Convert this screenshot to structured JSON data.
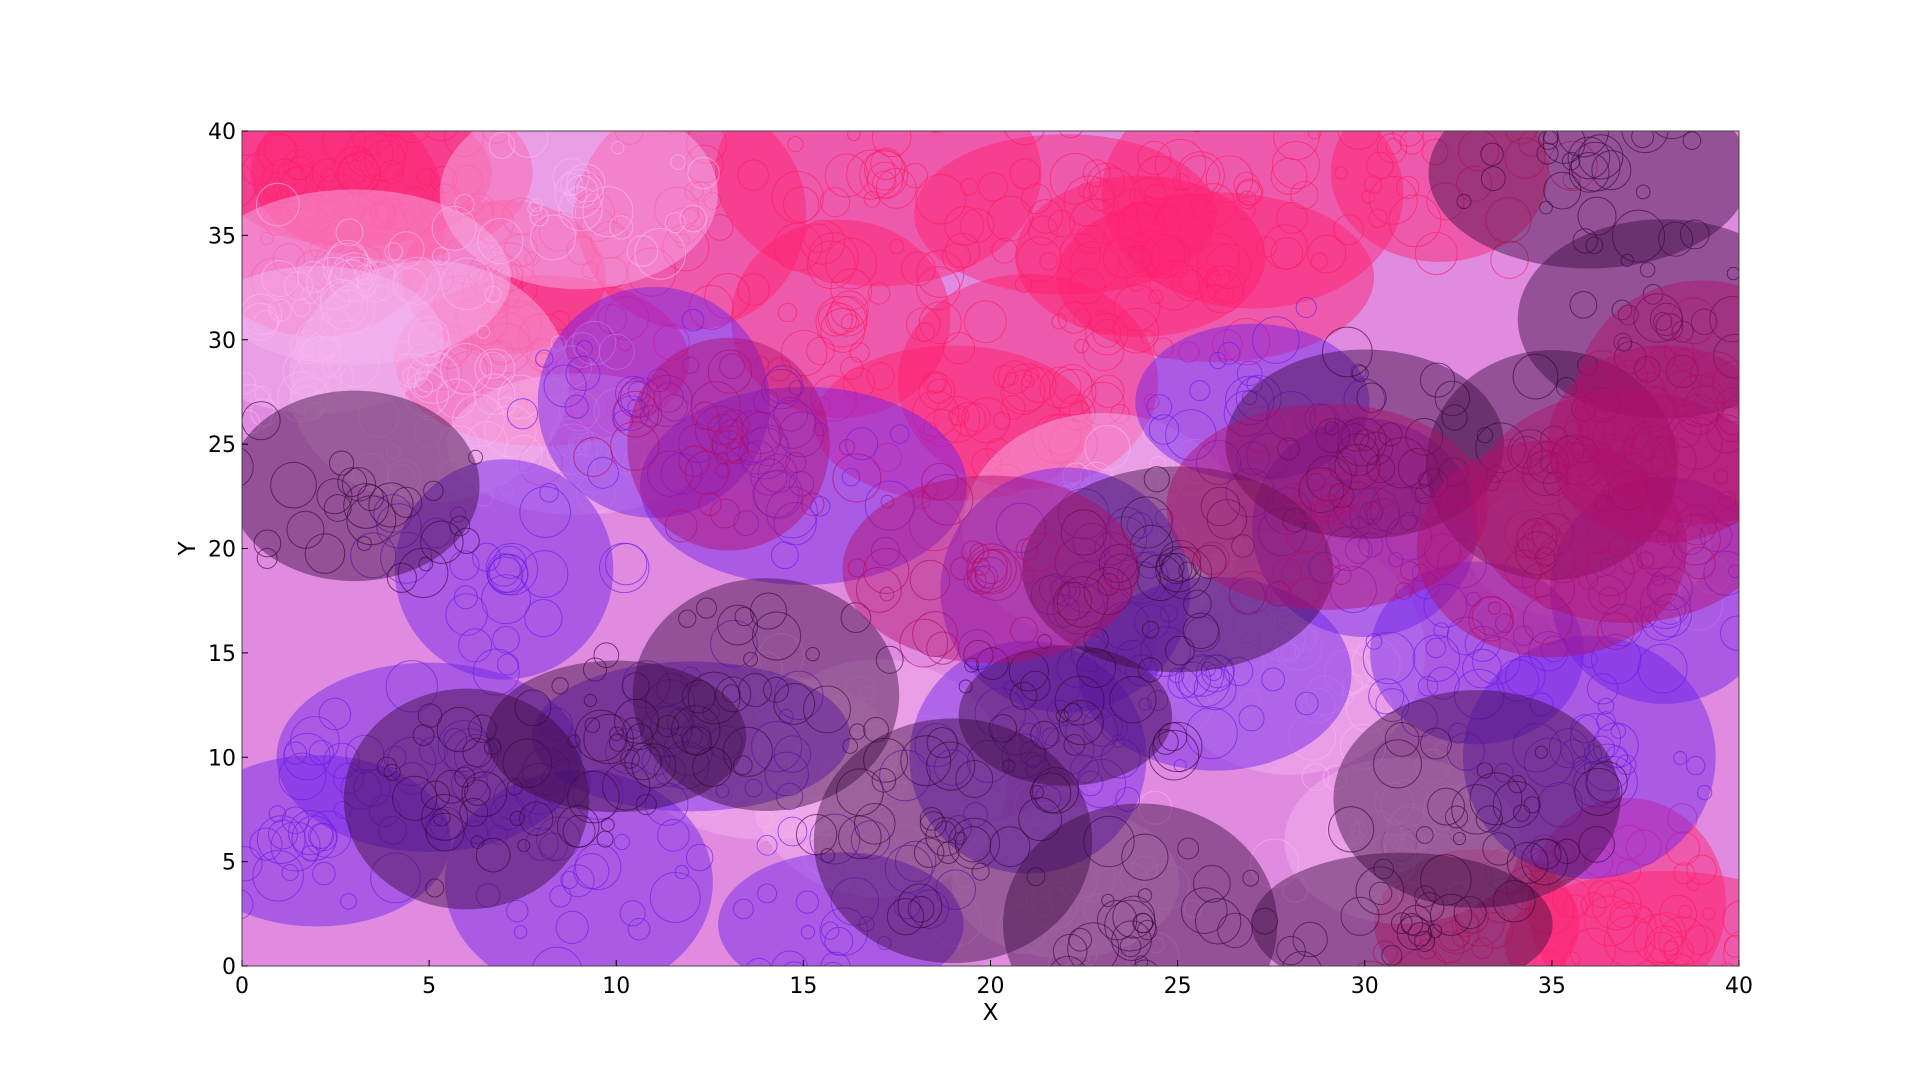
{
  "chart_data": {
    "type": "scatter",
    "title": "",
    "xlabel": "X",
    "ylabel": "Y",
    "xlim": [
      0,
      40
    ],
    "ylim": [
      0,
      40
    ],
    "xticks": [
      0,
      5,
      10,
      15,
      20,
      25,
      30,
      35,
      40
    ],
    "yticks": [
      0,
      5,
      10,
      15,
      20,
      25,
      30,
      35,
      40
    ],
    "grid": false,
    "background_color": "#e08ae0",
    "colors": {
      "pink_red": "#ff1f6a",
      "light_pink": "#f7b6ef",
      "blue_violet": "#6b1fe8",
      "dark_purple": "#3a0a3e",
      "magenta_dark": "#b0106a"
    },
    "series": [
      {
        "color_key": "pink_red",
        "values": [
          [
            4,
            38
          ],
          [
            2,
            36
          ],
          [
            7,
            33
          ],
          [
            12,
            36
          ],
          [
            17,
            38
          ],
          [
            22,
            36
          ],
          [
            27,
            37
          ],
          [
            32,
            38
          ],
          [
            16,
            31
          ],
          [
            21,
            28
          ],
          [
            26,
            33
          ],
          [
            8,
            29
          ],
          [
            37,
            3
          ],
          [
            33,
            2
          ],
          [
            38,
            1
          ],
          [
            3,
            38
          ],
          [
            19,
            26
          ],
          [
            24,
            34
          ]
        ]
      },
      {
        "color_key": "light_pink",
        "values": [
          [
            2,
            30
          ],
          [
            3,
            33
          ],
          [
            9,
            37
          ],
          [
            5,
            28
          ],
          [
            17,
            9
          ],
          [
            23,
            21
          ],
          [
            28,
            15
          ],
          [
            14,
            10
          ],
          [
            9,
            25
          ],
          [
            31,
            6
          ],
          [
            36,
            20
          ],
          [
            22,
            4
          ]
        ]
      },
      {
        "color_key": "blue_violet",
        "values": [
          [
            5,
            10
          ],
          [
            2,
            6
          ],
          [
            9,
            4
          ],
          [
            12,
            11
          ],
          [
            22,
            18
          ],
          [
            26,
            14
          ],
          [
            33,
            15
          ],
          [
            38,
            18
          ],
          [
            36,
            10
          ],
          [
            30,
            21
          ],
          [
            16,
            2
          ],
          [
            21,
            10
          ],
          [
            11,
            27
          ],
          [
            7,
            19
          ],
          [
            27,
            27
          ],
          [
            15,
            23
          ]
        ]
      },
      {
        "color_key": "dark_purple",
        "values": [
          [
            3,
            23
          ],
          [
            6,
            8
          ],
          [
            10,
            11
          ],
          [
            19,
            6
          ],
          [
            24,
            2
          ],
          [
            31,
            2
          ],
          [
            36,
            38
          ],
          [
            38,
            31
          ],
          [
            35,
            24
          ],
          [
            30,
            25
          ],
          [
            25,
            19
          ],
          [
            14,
            13
          ],
          [
            22,
            12
          ],
          [
            33,
            8
          ]
        ]
      },
      {
        "color_key": "magenta_dark",
        "values": [
          [
            38,
            25
          ],
          [
            37,
            22
          ],
          [
            39,
            27
          ],
          [
            13,
            25
          ],
          [
            20,
            19
          ],
          [
            35,
            20
          ],
          [
            29,
            22
          ]
        ]
      }
    ]
  }
}
